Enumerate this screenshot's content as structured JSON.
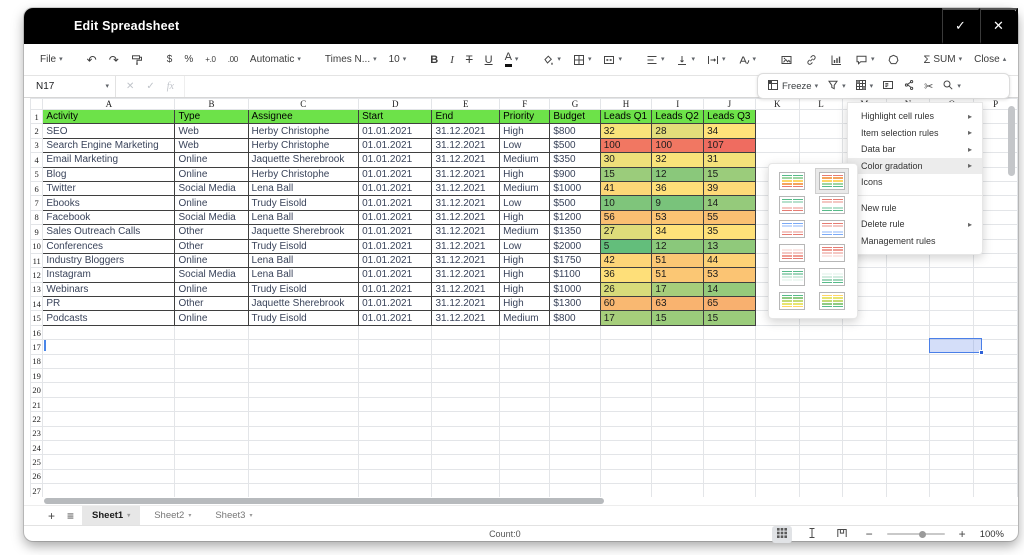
{
  "titlebar": {
    "title": "Edit Spreadsheet"
  },
  "icons": {
    "check": "✓",
    "close": "✕",
    "cancel": "✕",
    "chevron_down": "▾",
    "chevron_up": "▴",
    "submenu_arrow": "▸",
    "undo": "↶",
    "redo": "↷",
    "cut": "✂",
    "sigma": "Σ",
    "hamburger": "≡",
    "plus": "+",
    "minus": "−",
    "fx": "fx"
  },
  "toolbar": {
    "file": "File",
    "currency": "$",
    "percent": "%",
    "increase_decimal": "+.0",
    "decrease_decimal": ".00",
    "number_format": "Automatic",
    "font_name": "Times N...",
    "font_size": "10",
    "bold": "B",
    "italic": "I",
    "strikethrough": "T",
    "underline": "U",
    "text_color": "A",
    "sum": "SUM",
    "close": "Close"
  },
  "formula_bar": {
    "cell_reference": "N17"
  },
  "freeze_toolbar": {
    "freeze": "Freeze"
  },
  "context_menu": {
    "groups": [
      [
        {
          "label": "Highlight cell rules",
          "arrow": true
        },
        {
          "label": "Item selection rules",
          "arrow": true
        },
        {
          "label": "Data bar",
          "arrow": true
        },
        {
          "label": "Color gradation",
          "arrow": true,
          "active": true
        },
        {
          "label": "Icons",
          "arrow": false
        }
      ],
      [
        {
          "label": "New rule",
          "arrow": false
        },
        {
          "label": "Delete rule",
          "arrow": true
        },
        {
          "label": "Management rules",
          "arrow": false
        }
      ]
    ]
  },
  "gradient_submenu": {
    "selected_index": 1,
    "swatches": [
      {
        "name": "green-yellow-red",
        "colors": [
          "#57bb8a",
          "#9ed6a3",
          "#ffd666",
          "#f5a35c",
          "#e67c73"
        ]
      },
      {
        "name": "red-yellow-green",
        "colors": [
          "#e67c73",
          "#f5a35c",
          "#ffd666",
          "#9ed6a3",
          "#57bb8a"
        ]
      },
      {
        "name": "green-white-red",
        "colors": [
          "#57bb8a",
          "#b7e1cd",
          "#ffffff",
          "#f4c7c3",
          "#e67c73"
        ]
      },
      {
        "name": "red-white-green",
        "colors": [
          "#e67c73",
          "#f4c7c3",
          "#ffffff",
          "#b7e1cd",
          "#57bb8a"
        ]
      },
      {
        "name": "blue-white-red",
        "colors": [
          "#7baaf7",
          "#c6dafc",
          "#ffffff",
          "#f4c7c3",
          "#e67c73"
        ]
      },
      {
        "name": "red-white-blue",
        "colors": [
          "#e67c73",
          "#f4c7c3",
          "#ffffff",
          "#c6dafc",
          "#7baaf7"
        ]
      },
      {
        "name": "white-red",
        "colors": [
          "#ffffff",
          "#fbe7e5",
          "#f4c7c3",
          "#ef9d94",
          "#e67c73"
        ]
      },
      {
        "name": "red-white",
        "colors": [
          "#e67c73",
          "#ef9d94",
          "#f4c7c3",
          "#fbe7e5",
          "#ffffff"
        ]
      },
      {
        "name": "green-white",
        "colors": [
          "#57bb8a",
          "#9fd6bb",
          "#d3ece0",
          "#eef8f3",
          "#ffffff"
        ]
      },
      {
        "name": "white-green",
        "colors": [
          "#ffffff",
          "#eef8f3",
          "#d3ece0",
          "#9fd6bb",
          "#57bb8a"
        ]
      },
      {
        "name": "green-yellow",
        "colors": [
          "#57bb8a",
          "#8fcb82",
          "#c4db76",
          "#e8e56f",
          "#ffd666"
        ]
      },
      {
        "name": "yellow-green",
        "colors": [
          "#ffd666",
          "#e8e56f",
          "#c4db76",
          "#8fcb82",
          "#57bb8a"
        ]
      }
    ]
  },
  "sheet": {
    "column_letters": [
      "A",
      "B",
      "C",
      "D",
      "E",
      "F",
      "G",
      "H",
      "I",
      "J",
      "K",
      "L",
      "M",
      "N",
      "O",
      "P"
    ],
    "visible_rows": 27,
    "header_bg": "#6de249",
    "header_row": [
      "Activity",
      "Type",
      "Assignee",
      "Start",
      "End",
      "Priority",
      "Budget",
      "Leads Q1",
      "Leads Q2",
      "Leads Q3"
    ],
    "rows": [
      [
        "SEO",
        "Web",
        "Herby Christophe",
        "01.01.2021",
        "31.12.2021",
        "High",
        "$800",
        "32",
        "28",
        "34"
      ],
      [
        "Search Engine Marketing",
        "Web",
        "Herby Christophe",
        "01.01.2021",
        "31.12.2021",
        "Low",
        "$500",
        "100",
        "100",
        "107"
      ],
      [
        "Email Marketing",
        "Online",
        "Jaquette Sherebrook",
        "01.01.2021",
        "31.12.2021",
        "Medium",
        "$350",
        "30",
        "32",
        "31"
      ],
      [
        "Blog",
        "Online",
        "Herby Christophe",
        "01.01.2021",
        "31.12.2021",
        "High",
        "$900",
        "15",
        "12",
        "15"
      ],
      [
        "Twitter",
        "Social Media",
        "Lena Ball",
        "01.01.2021",
        "31.12.2021",
        "Medium",
        "$1000",
        "41",
        "36",
        "39"
      ],
      [
        "Ebooks",
        "Online",
        "Trudy Eisold",
        "01.01.2021",
        "31.12.2021",
        "Low",
        "$500",
        "10",
        "9",
        "14"
      ],
      [
        "Facebook",
        "Social Media",
        "Lena Ball",
        "01.01.2021",
        "31.12.2021",
        "High",
        "$1200",
        "56",
        "53",
        "55"
      ],
      [
        "Sales Outreach Calls",
        "Other",
        "Jaquette Sherebrook",
        "01.01.2021",
        "31.12.2021",
        "Medium",
        "$1350",
        "27",
        "34",
        "35"
      ],
      [
        "Conferences",
        "Other",
        "Trudy Eisold",
        "01.01.2021",
        "31.12.2021",
        "Low",
        "$2000",
        "5",
        "12",
        "13"
      ],
      [
        "Industry Bloggers",
        "Online",
        "Lena Ball",
        "01.01.2021",
        "31.12.2021",
        "High",
        "$1750",
        "42",
        "51",
        "44"
      ],
      [
        "Instagram",
        "Social Media",
        "Lena Ball",
        "01.01.2021",
        "31.12.2021",
        "High",
        "$1100",
        "36",
        "51",
        "53"
      ],
      [
        "Webinars",
        "Online",
        "Trudy Eisold",
        "01.01.2021",
        "31.12.2021",
        "High",
        "$1000",
        "26",
        "17",
        "14"
      ],
      [
        "PR",
        "Other",
        "Jaquette Sherebrook",
        "01.01.2021",
        "31.12.2021",
        "High",
        "$1300",
        "60",
        "63",
        "65"
      ],
      [
        "Podcasts",
        "Online",
        "Trudy Eisold",
        "01.01.2021",
        "31.12.2021",
        "Medium",
        "$800",
        "17",
        "15",
        "15"
      ]
    ],
    "lead_columns": [
      7,
      8,
      9
    ],
    "color_scale": {
      "min": "#63be7b",
      "mid": "#ffe47a",
      "max": "#ef6c60"
    },
    "selected_cell": "N17"
  },
  "sheet_tabs": {
    "tabs": [
      {
        "label": "Sheet1",
        "active": true
      },
      {
        "label": "Sheet2",
        "active": false
      },
      {
        "label": "Sheet3",
        "active": false
      }
    ]
  },
  "status_bar": {
    "count": "Count:0",
    "zoom_level": "100%"
  }
}
